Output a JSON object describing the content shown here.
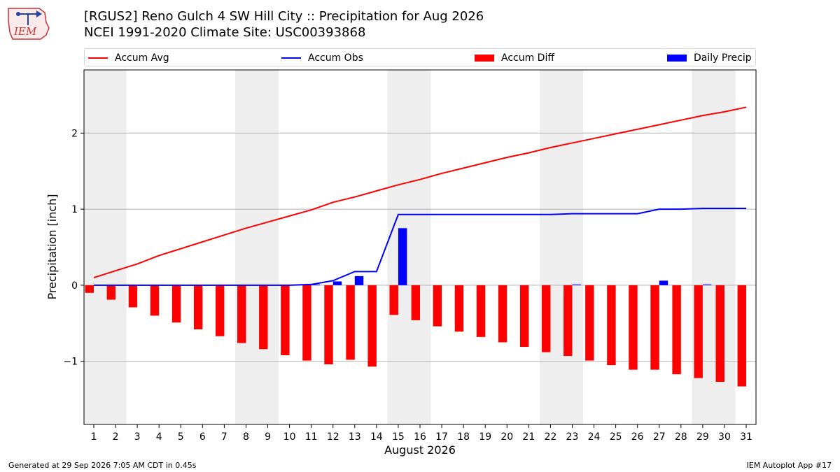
{
  "header": {
    "title_line1": "[RGUS2] Reno Gulch 4 SW Hill City :: Precipitation for Aug 2026",
    "title_line2": "NCEI 1991-2020 Climate Site: USC00393868",
    "logo_text": "IEM"
  },
  "footer": {
    "generated": "Generated at 29 Sep 2026 7:05 AM CDT in 0.45s",
    "app": "IEM Autoplot App #17"
  },
  "colors": {
    "avg": "#ff0000",
    "obs": "#0000ff",
    "diff": "#ff0000",
    "daily": "#0000ff",
    "weekend_shade": "#eeeeee",
    "grid": "#b0b0b0"
  },
  "chart_data": {
    "type": "bar",
    "xlabel": "August 2026",
    "ylabel": "Precipitation [inch]",
    "ylim": [
      -1.83,
      2.83
    ],
    "yticks": [
      -1,
      0,
      1,
      2
    ],
    "ytick_labels": [
      "−1",
      "0",
      "1",
      "2"
    ],
    "grid": "horizontal",
    "legend_placement": "top, outside plot",
    "days": [
      1,
      2,
      3,
      4,
      5,
      6,
      7,
      8,
      9,
      10,
      11,
      12,
      13,
      14,
      15,
      16,
      17,
      18,
      19,
      20,
      21,
      22,
      23,
      24,
      25,
      26,
      27,
      28,
      29,
      30,
      31
    ],
    "shaded_day_ranges": [
      [
        1,
        2
      ],
      [
        8,
        9
      ],
      [
        15,
        16
      ],
      [
        22,
        23
      ],
      [
        29,
        30
      ]
    ],
    "series": [
      {
        "name": "Accum Avg",
        "kind": "line",
        "values": [
          0.1,
          0.19,
          0.28,
          0.39,
          0.48,
          0.57,
          0.66,
          0.75,
          0.83,
          0.91,
          0.99,
          1.09,
          1.16,
          1.24,
          1.32,
          1.39,
          1.47,
          1.54,
          1.61,
          1.68,
          1.74,
          1.81,
          1.87,
          1.93,
          1.99,
          2.05,
          2.11,
          2.17,
          2.23,
          2.28,
          2.34
        ]
      },
      {
        "name": "Accum Obs",
        "kind": "line",
        "values": [
          0.0,
          0.0,
          0.0,
          0.0,
          0.0,
          0.0,
          0.0,
          0.0,
          0.0,
          0.0,
          0.01,
          0.06,
          0.18,
          0.18,
          0.93,
          0.93,
          0.93,
          0.93,
          0.93,
          0.93,
          0.93,
          0.93,
          0.94,
          0.94,
          0.94,
          0.94,
          1.0,
          1.0,
          1.01,
          1.01,
          1.01
        ]
      },
      {
        "name": "Accum Diff",
        "kind": "bar",
        "values": [
          -0.1,
          -0.19,
          -0.29,
          -0.4,
          -0.49,
          -0.58,
          -0.67,
          -0.76,
          -0.84,
          -0.92,
          -0.99,
          -1.04,
          -0.98,
          -1.07,
          -0.39,
          -0.46,
          -0.54,
          -0.61,
          -0.68,
          -0.75,
          -0.81,
          -0.88,
          -0.93,
          -0.99,
          -1.05,
          -1.11,
          -1.11,
          -1.17,
          -1.22,
          -1.27,
          -1.33
        ]
      },
      {
        "name": "Daily Precip",
        "kind": "bar",
        "values": [
          0,
          0,
          0,
          0,
          0,
          0,
          0,
          0,
          0,
          0,
          0.01,
          0.05,
          0.12,
          0,
          0.75,
          0,
          0,
          0,
          0,
          0,
          0,
          0,
          0.01,
          0,
          0,
          0,
          0.06,
          0,
          0.01,
          0,
          0
        ]
      }
    ]
  }
}
